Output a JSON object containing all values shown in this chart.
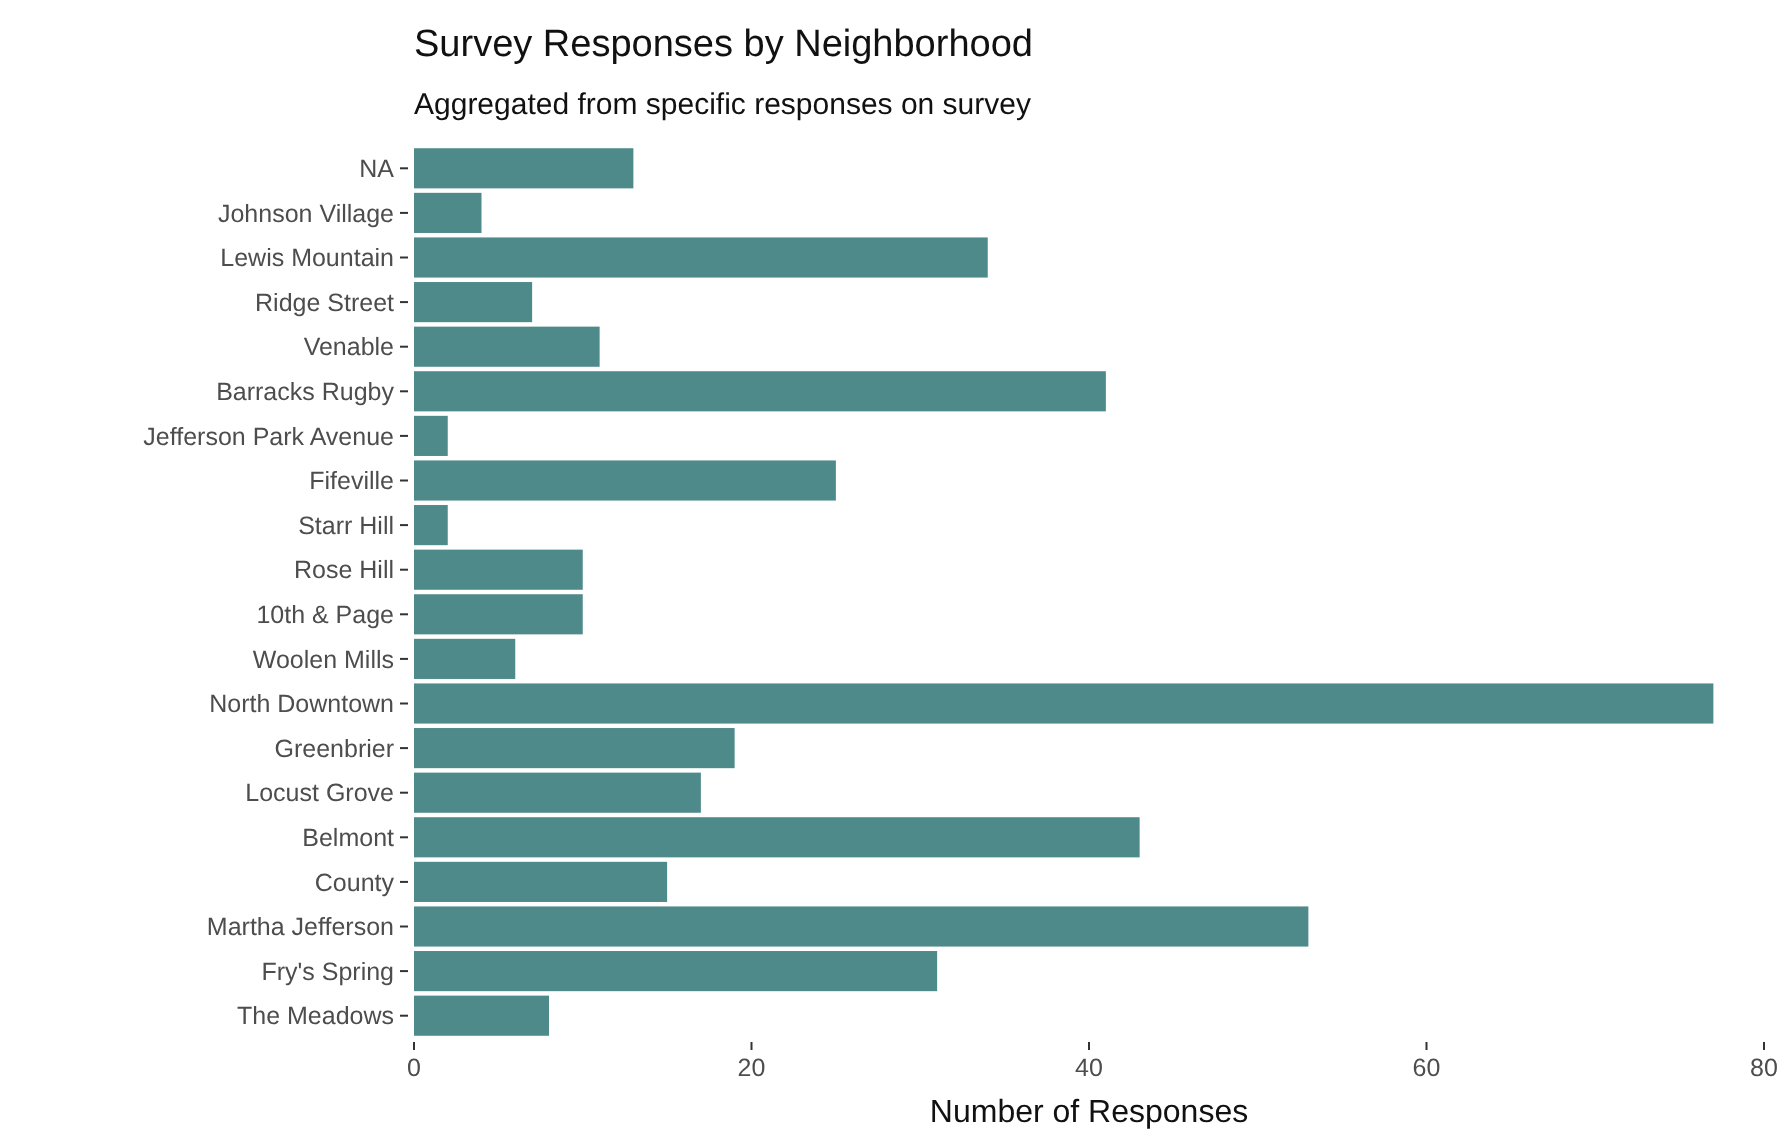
{
  "chart_data": {
    "type": "bar",
    "orientation": "horizontal",
    "title": "Survey Responses by Neighborhood",
    "subtitle": "Aggregated from specific responses on survey",
    "xlabel": "Number of Responses",
    "categories": [
      "NA",
      "Johnson Village",
      "Lewis Mountain",
      "Ridge Street",
      "Venable",
      "Barracks Rugby",
      "Jefferson Park Avenue",
      "Fifeville",
      "Starr Hill",
      "Rose Hill",
      "10th & Page",
      "Woolen Mills",
      "North Downtown",
      "Greenbrier",
      "Locust Grove",
      "Belmont",
      "County",
      "Martha Jefferson",
      "Fry's Spring",
      "The Meadows"
    ],
    "values": [
      13,
      4,
      34,
      7,
      11,
      41,
      2,
      25,
      2,
      10,
      10,
      6,
      77,
      19,
      17,
      43,
      15,
      53,
      31,
      8
    ],
    "color": "#4f8a8b",
    "xlim": [
      0,
      80
    ],
    "xticks": [
      0,
      20,
      40,
      60,
      80
    ],
    "grid": false
  }
}
